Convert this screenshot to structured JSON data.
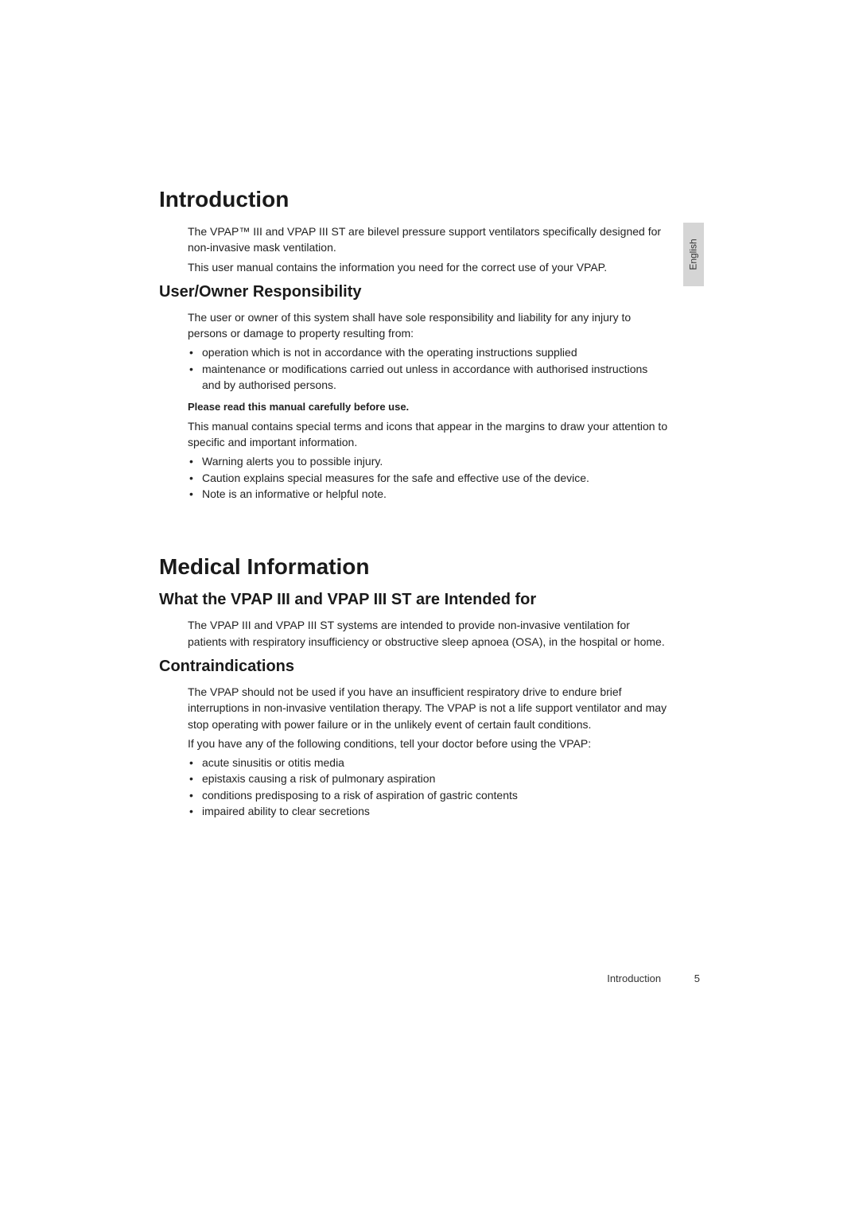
{
  "sideTab": {
    "label": "English",
    "bgColor": "#d5d5d5",
    "textColor": "#333333",
    "fontSize": 12
  },
  "introduction": {
    "heading": "Introduction",
    "para1": "The VPAP™ III and VPAP III ST are bilevel pressure support ventilators specifically designed for non-invasive mask ventilation.",
    "para2": "This user manual contains the information you need for the correct use of your VPAP."
  },
  "userOwner": {
    "heading": "User/Owner Responsibility",
    "para1": "The user or owner of this system shall have sole responsibility and liability for any injury to persons or damage to property resulting from:",
    "bullets1": [
      "operation which is not in accordance with the operating instructions supplied",
      "maintenance or modifications carried out unless in accordance with authorised instructions and by authorised persons."
    ],
    "boldNote": "Please read this manual carefully before use.",
    "para2": "This manual contains special terms and icons that appear in the margins to draw your attention to specific and important information.",
    "bullets2": [
      "Warning alerts you to possible injury.",
      "Caution explains special measures for the safe and effective use of the device.",
      "Note is an informative or helpful note."
    ]
  },
  "medical": {
    "heading": "Medical Information"
  },
  "intended": {
    "heading": "What the VPAP III and VPAP III ST are Intended for",
    "para1": "The VPAP III and VPAP III ST systems are intended to provide non-invasive ventilation for patients with respiratory insufficiency or obstructive sleep apnoea (OSA), in the hospital or home."
  },
  "contra": {
    "heading": "Contraindications",
    "para1": "The VPAP should not be used if you have an insufficient respiratory drive to endure brief interruptions in non-invasive ventilation therapy. The VPAP is not a life support ventilator and may stop operating with power failure or in the unlikely event of certain fault conditions.",
    "para2": "If you have any of the following conditions, tell your doctor before using the VPAP:",
    "bullets": [
      "acute sinusitis or otitis media",
      "epistaxis causing a risk of pulmonary aspiration",
      "conditions predisposing to a risk of aspiration of gastric contents",
      "impaired ability to clear secretions"
    ]
  },
  "footer": {
    "sectionLabel": "Introduction",
    "pageNumber": "5"
  },
  "styles": {
    "pageWidth": 1080,
    "pageHeight": 1528,
    "contentLeft": 200,
    "contentTop": 235,
    "contentWidth": 640,
    "bodyIndent": 36,
    "h1FontSize": 28,
    "h2FontSize": 20,
    "bodyFontSize": 14,
    "boldFontSize": 13,
    "textColor": "#222222",
    "headingColor": "#1a1a1a",
    "backgroundColor": "#ffffff",
    "lineHeight": 1.45
  }
}
